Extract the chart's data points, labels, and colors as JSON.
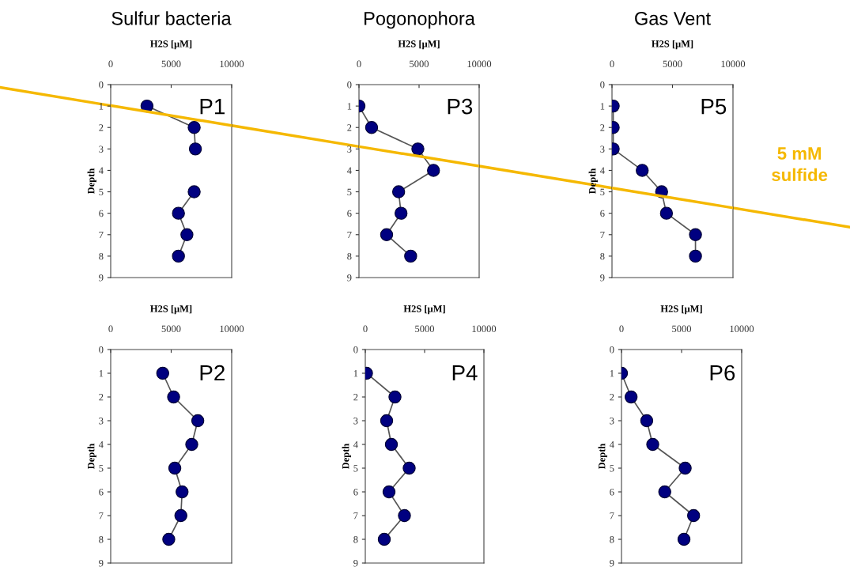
{
  "chart_data": [
    {
      "type": "line",
      "title": "Sulfur bacteria",
      "xlabel": "H2S [μM]",
      "ylabel": "Depth",
      "annotations": [
        "P1"
      ],
      "xlim": [
        0,
        10000
      ],
      "xticks": [
        0,
        5000,
        10000
      ],
      "ylim": [
        9,
        0
      ],
      "yticks": [
        0,
        1,
        2,
        3,
        4,
        5,
        6,
        7,
        8,
        9
      ],
      "marker": "circle",
      "line_style": "solid",
      "grid": false,
      "series": [
        {
          "color": "#000080",
          "x": [
            3000,
            6900,
            7000,
            null,
            6900,
            5600,
            6300,
            5600
          ],
          "values": [
            1,
            2,
            3,
            null,
            5,
            6,
            7,
            8
          ]
        },
        {
          "type": "line",
          "marker": "none",
          "color": "#f5b800",
          "x": [
            0,
            10000
          ],
          "values": [
            0.98,
            1.91
          ]
        }
      ]
    },
    {
      "type": "line",
      "title": "Pogonophora",
      "xlabel": "H2S [μM]",
      "annotations": [
        "P3"
      ],
      "xlim": [
        0,
        10000
      ],
      "xticks": [
        0,
        5000,
        10000
      ],
      "ylim": [
        9,
        0
      ],
      "yticks": [
        0,
        1,
        2,
        3,
        4,
        5,
        6,
        7,
        8,
        9
      ],
      "marker": "circle",
      "line_style": "solid",
      "grid": false,
      "series": [
        {
          "color": "#000080",
          "x": [
            0,
            1050,
            4900,
            6200,
            3300,
            3500,
            2300,
            4300
          ],
          "values": [
            1,
            2,
            3,
            4,
            5,
            6,
            7,
            8
          ]
        },
        {
          "type": "line",
          "marker": "none",
          "color": "#f5b800",
          "x": [
            0,
            10000
          ],
          "values": [
            2.89,
            3.8
          ]
        }
      ]
    },
    {
      "type": "line",
      "title": "Gas Vent",
      "xlabel": "H2S [μM]",
      "ylabel": "Depth",
      "annotations": [
        "P5"
      ],
      "xlim": [
        0,
        10000
      ],
      "xticks": [
        0,
        5000,
        10000
      ],
      "ylim": [
        9,
        0
      ],
      "yticks": [
        0,
        1,
        2,
        3,
        4,
        5,
        6,
        7,
        8,
        9
      ],
      "marker": "circle",
      "line_style": "solid",
      "grid": false,
      "series": [
        {
          "color": "#000080",
          "x": [
            100,
            100,
            100,
            2500,
            4100,
            4500,
            6900,
            6900
          ],
          "values": [
            1,
            2,
            3,
            4,
            5,
            6,
            7,
            8
          ]
        },
        {
          "type": "line",
          "marker": "none",
          "name": "5 mM sulfide",
          "color": "#f5b800",
          "x": [
            0,
            10000
          ],
          "values": [
            4.82,
            5.75
          ]
        }
      ]
    },
    {
      "type": "line",
      "xlabel": "H2S [μM]",
      "ylabel": "Depth",
      "annotations": [
        "P2"
      ],
      "xlim": [
        0,
        10000
      ],
      "xticks": [
        0,
        5000,
        10000
      ],
      "ylim": [
        9,
        0
      ],
      "yticks": [
        0,
        1,
        2,
        3,
        4,
        5,
        6,
        7,
        8,
        9
      ],
      "marker": "circle",
      "line_style": "solid",
      "grid": false,
      "series": [
        {
          "color": "#000080",
          "x": [
            4300,
            5200,
            7200,
            6700,
            5300,
            5900,
            5800,
            4800
          ],
          "values": [
            1,
            2,
            3,
            4,
            5,
            6,
            7,
            8
          ]
        }
      ]
    },
    {
      "type": "line",
      "xlabel": "H2S [μM]",
      "ylabel": "Depth",
      "annotations": [
        "P4"
      ],
      "xlim": [
        0,
        10000
      ],
      "xticks": [
        0,
        5000,
        10000
      ],
      "ylim": [
        9,
        0
      ],
      "yticks": [
        0,
        1,
        2,
        3,
        4,
        5,
        6,
        7,
        8,
        9
      ],
      "marker": "circle",
      "line_style": "solid",
      "grid": false,
      "series": [
        {
          "color": "#000080",
          "x": [
            100,
            2500,
            1800,
            2200,
            3700,
            2000,
            3300,
            1600
          ],
          "values": [
            1,
            2,
            3,
            4,
            5,
            6,
            7,
            8
          ]
        }
      ]
    },
    {
      "type": "line",
      "xlabel": "H2S [μM]",
      "ylabel": "Depth",
      "annotations": [
        "P6"
      ],
      "xlim": [
        0,
        10000
      ],
      "xticks": [
        0,
        5000,
        10000
      ],
      "ylim": [
        9,
        0
      ],
      "yticks": [
        0,
        1,
        2,
        3,
        4,
        5,
        6,
        7,
        8,
        9
      ],
      "marker": "circle",
      "line_style": "solid",
      "grid": false,
      "series": [
        {
          "color": "#000080",
          "x": [
            0,
            800,
            2100,
            2600,
            5300,
            3600,
            6000,
            5200
          ],
          "values": [
            1,
            2,
            3,
            4,
            5,
            6,
            7,
            8
          ]
        }
      ]
    }
  ]
}
